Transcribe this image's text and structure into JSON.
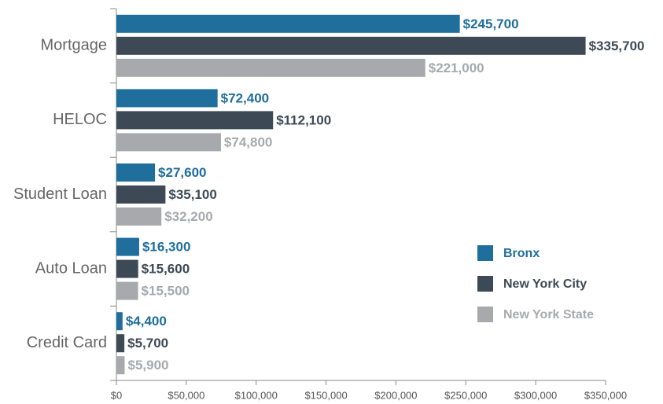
{
  "chart_data": {
    "type": "hbar",
    "categories": [
      "Mortgage",
      "HELOC",
      "Student Loan",
      "Auto Loan",
      "Credit Card"
    ],
    "series": [
      {
        "name": "Bronx",
        "color": "#1f6e9c",
        "values": [
          245700,
          72400,
          27600,
          16300,
          4400
        ],
        "value_labels": [
          "$245,700",
          "$72,400",
          "$27,600",
          "$16,300",
          "$4,400"
        ]
      },
      {
        "name": "New York City",
        "color": "#3d4a55",
        "values": [
          335700,
          112100,
          35100,
          15600,
          5700
        ],
        "value_labels": [
          "$335,700",
          "$112,100",
          "$35,100",
          "$15,600",
          "$5,700"
        ]
      },
      {
        "name": "New York State",
        "color": "#a7a9ac",
        "values": [
          221000,
          74800,
          32200,
          15500,
          5900
        ],
        "value_labels": [
          "$221,000",
          "$74,800",
          "$32,200",
          "$15,500",
          "$5,900"
        ]
      }
    ],
    "xlim": [
      0,
      350000
    ],
    "xticks": [
      {
        "value": 0,
        "label": "$0"
      },
      {
        "value": 50000,
        "label": "$50,000"
      },
      {
        "value": 100000,
        "label": "$100,000"
      },
      {
        "value": 150000,
        "label": "$150,000"
      },
      {
        "value": 200000,
        "label": "$200,000"
      },
      {
        "value": 250000,
        "label": "$250,000"
      },
      {
        "value": 300000,
        "label": "$300,000"
      },
      {
        "value": 350000,
        "label": "$350,000"
      }
    ],
    "legend": "lower right",
    "grid": false
  }
}
